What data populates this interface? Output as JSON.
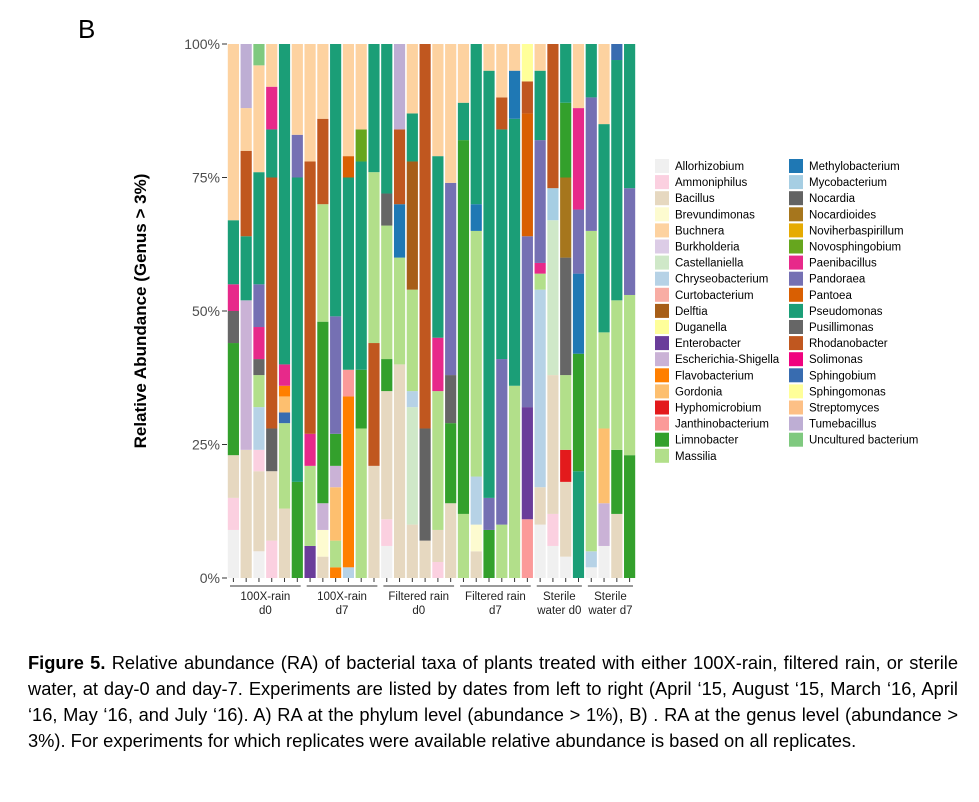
{
  "panel_label": "B",
  "caption": {
    "lead": "Figure 5.",
    "text": " Relative abundance (RA) of bacterial taxa of plants treated with either 100X-rain, filtered rain, or sterile water, at day-0 and day-7. Experiments are listed by dates from left to right (April ‘15, August ‘15, March ‘16, April ‘16, May ‘16, and July ‘16). A) RA at the phylum level (abundance > 1%), B) . RA at the genus level (abundance > 3%). For experiments for which replicates were available relative abundance is based on all replicates."
  },
  "chart_data": {
    "type": "bar",
    "stacked": true,
    "ylabel": "Relative Abundance (Genus > 3%)",
    "yticks": [
      "0%",
      "25%",
      "50%",
      "75%",
      "100%"
    ],
    "ylim": [
      0,
      100
    ],
    "legend_position": "right",
    "groups": [
      {
        "label": "100X-rain d0",
        "line1": "100X-rain",
        "line2": "d0",
        "bars": 6
      },
      {
        "label": "100X-rain d7",
        "line1": "100X-rain",
        "line2": "d7",
        "bars": 6
      },
      {
        "label": "Filtered rain d0",
        "line1": "Filtered rain",
        "line2": "d0",
        "bars": 6
      },
      {
        "label": "Filtered rain d7",
        "line1": "Filtered rain",
        "line2": "d7",
        "bars": 6
      },
      {
        "label": "Sterile water d0",
        "line1": "Sterile",
        "line2": "water d0",
        "bars": 4
      },
      {
        "label": "Sterile water d7",
        "line1": "Sterile",
        "line2": "water d7",
        "bars": 4
      }
    ],
    "taxa": [
      {
        "name": "Allorhizobium",
        "color": "#f0f0f0"
      },
      {
        "name": "Ammoniphilus",
        "color": "#fbd0e0"
      },
      {
        "name": "Bacillus",
        "color": "#e6d8c0"
      },
      {
        "name": "Brevundimonas",
        "color": "#fdfbd0"
      },
      {
        "name": "Buchnera",
        "color": "#fdd2a0"
      },
      {
        "name": "Burkholderia",
        "color": "#dccce6"
      },
      {
        "name": "Castellaniella",
        "color": "#cfe8c8"
      },
      {
        "name": "Chryseobacterium",
        "color": "#b6d2e6"
      },
      {
        "name": "Curtobacterium",
        "color": "#f8ada4"
      },
      {
        "name": "Delftia",
        "color": "#a75e18"
      },
      {
        "name": "Duganella",
        "color": "#fefe9a"
      },
      {
        "name": "Enterobacter",
        "color": "#6a3d9a"
      },
      {
        "name": "Escherichia-Shigella",
        "color": "#cab2d6"
      },
      {
        "name": "Flavobacterium",
        "color": "#ff7f00"
      },
      {
        "name": "Gordonia",
        "color": "#fdbf6f"
      },
      {
        "name": "Hyphomicrobium",
        "color": "#e31a1c"
      },
      {
        "name": "Janthinobacterium",
        "color": "#fb9a99"
      },
      {
        "name": "Limnobacter",
        "color": "#33a02c"
      },
      {
        "name": "Massilia",
        "color": "#b2df8a"
      },
      {
        "name": "Methylobacterium",
        "color": "#1f78b4"
      },
      {
        "name": "Mycobacterium",
        "color": "#a6cee3"
      },
      {
        "name": "Nocardia",
        "color": "#636363"
      },
      {
        "name": "Nocardioides",
        "color": "#a6761d"
      },
      {
        "name": "Noviherbaspirillum",
        "color": "#e6ab02"
      },
      {
        "name": "Novosphingobium",
        "color": "#66a61e"
      },
      {
        "name": "Paenibacillus",
        "color": "#e7298a"
      },
      {
        "name": "Pandoraea",
        "color": "#7570b3"
      },
      {
        "name": "Pantoea",
        "color": "#d95f02"
      },
      {
        "name": "Pseudomonas",
        "color": "#1b9e77"
      },
      {
        "name": "Pusillimonas",
        "color": "#666666"
      },
      {
        "name": "Rhodanobacter",
        "color": "#c0571f"
      },
      {
        "name": "Solimonas",
        "color": "#f0027f"
      },
      {
        "name": "Sphingobium",
        "color": "#386cb0"
      },
      {
        "name": "Sphingomonas",
        "color": "#ffff99"
      },
      {
        "name": "Streptomyces",
        "color": "#fdc086"
      },
      {
        "name": "Tumebacillus",
        "color": "#beaed4"
      },
      {
        "name": "Uncultured bacterium",
        "color": "#7fc97f"
      }
    ],
    "bars": [
      {
        "group": "100X-rain d0",
        "segments": [
          [
            "Allorhizobium",
            9
          ],
          [
            "Ammoniphilus",
            6
          ],
          [
            "Bacillus",
            8
          ],
          [
            "Limnobacter",
            21
          ],
          [
            "Pusillimonas",
            6
          ],
          [
            "Paenibacillus",
            5
          ],
          [
            "Pseudomonas",
            12
          ],
          [
            "Buchnera",
            33
          ]
        ]
      },
      {
        "group": "100X-rain d0",
        "segments": [
          [
            "Bacillus",
            24
          ],
          [
            "Escherichia-Shigella",
            28
          ],
          [
            "Pseudomonas",
            12
          ],
          [
            "Rhodanobacter",
            16
          ],
          [
            "Buchnera",
            8
          ],
          [
            "Tumebacillus",
            12
          ]
        ]
      },
      {
        "group": "100X-rain d0",
        "segments": [
          [
            "Allorhizobium",
            5
          ],
          [
            "Bacillus",
            15
          ],
          [
            "Ammoniphilus",
            4
          ],
          [
            "Chryseobacterium",
            8
          ],
          [
            "Massilia",
            6
          ],
          [
            "Pusillimonas",
            3
          ],
          [
            "Paenibacillus",
            6
          ],
          [
            "Pandoraea",
            8
          ],
          [
            "Pseudomonas",
            21
          ],
          [
            "Buchnera",
            20
          ],
          [
            "Uncultured bacterium",
            4
          ]
        ]
      },
      {
        "group": "100X-rain d0",
        "segments": [
          [
            "Ammoniphilus",
            7
          ],
          [
            "Bacillus",
            13
          ],
          [
            "Nocardia",
            8
          ],
          [
            "Rhodanobacter",
            47
          ],
          [
            "Pseudomonas",
            9
          ],
          [
            "Paenibacillus",
            8
          ],
          [
            "Buchnera",
            8
          ]
        ]
      },
      {
        "group": "100X-rain d0",
        "segments": [
          [
            "Bacillus",
            13
          ],
          [
            "Massilia",
            16
          ],
          [
            "Sphingobium",
            2
          ],
          [
            "Gordonia",
            3
          ],
          [
            "Flavobacterium",
            2
          ],
          [
            "Paenibacillus",
            4
          ],
          [
            "Pseudomonas",
            60
          ]
        ]
      },
      {
        "group": "100X-rain d0",
        "segments": [
          [
            "Limnobacter",
            18
          ],
          [
            "Pseudomonas",
            57
          ],
          [
            "Pandoraea",
            8
          ],
          [
            "Buchnera",
            17
          ]
        ]
      },
      {
        "group": "100X-rain d7",
        "segments": [
          [
            "Enterobacter",
            6
          ],
          [
            "Massilia",
            15
          ],
          [
            "Paenibacillus",
            6
          ],
          [
            "Rhodanobacter",
            51
          ],
          [
            "Buchnera",
            22
          ]
        ]
      },
      {
        "group": "100X-rain d7",
        "segments": [
          [
            "Bacillus",
            4
          ],
          [
            "Brevundimonas",
            5
          ],
          [
            "Escherichia-Shigella",
            5
          ],
          [
            "Limnobacter",
            34
          ],
          [
            "Massilia",
            22
          ],
          [
            "Rhodanobacter",
            16
          ],
          [
            "Buchnera",
            14
          ]
        ]
      },
      {
        "group": "100X-rain d7",
        "segments": [
          [
            "Flavobacterium",
            2
          ],
          [
            "Massilia",
            5
          ],
          [
            "Gordonia",
            10
          ],
          [
            "Escherichia-Shigella",
            4
          ],
          [
            "Limnobacter",
            6
          ],
          [
            "Pandoraea",
            22
          ],
          [
            "Pseudomonas",
            51
          ]
        ]
      },
      {
        "group": "100X-rain d7",
        "segments": [
          [
            "Chryseobacterium",
            2
          ],
          [
            "Flavobacterium",
            32
          ],
          [
            "Janthinobacterium",
            5
          ],
          [
            "Pseudomonas",
            36
          ],
          [
            "Pantoea",
            4
          ],
          [
            "Buchnera",
            21
          ]
        ]
      },
      {
        "group": "100X-rain d7",
        "segments": [
          [
            "Massilia",
            28
          ],
          [
            "Limnobacter",
            11
          ],
          [
            "Pseudomonas",
            39
          ],
          [
            "Novosphingobium",
            6
          ],
          [
            "Buchnera",
            16
          ]
        ]
      },
      {
        "group": "100X-rain d7",
        "segments": [
          [
            "Bacillus",
            21
          ],
          [
            "Rhodanobacter",
            23
          ],
          [
            "Massilia",
            32
          ],
          [
            "Pseudomonas",
            24
          ]
        ]
      },
      {
        "group": "Filtered rain d0",
        "segments": [
          [
            "Allorhizobium",
            6
          ],
          [
            "Ammoniphilus",
            5
          ],
          [
            "Bacillus",
            24
          ],
          [
            "Limnobacter",
            6
          ],
          [
            "Massilia",
            25
          ],
          [
            "Pusillimonas",
            6
          ],
          [
            "Pseudomonas",
            28
          ]
        ]
      },
      {
        "group": "Filtered rain d0",
        "segments": [
          [
            "Bacillus",
            40
          ],
          [
            "Massilia",
            20
          ],
          [
            "Methylobacterium",
            10
          ],
          [
            "Rhodanobacter",
            14
          ],
          [
            "Tumebacillus",
            16
          ]
        ]
      },
      {
        "group": "Filtered rain d0",
        "segments": [
          [
            "Bacillus",
            10
          ],
          [
            "Castellaniella",
            22
          ],
          [
            "Chryseobacterium",
            3
          ],
          [
            "Massilia",
            19
          ],
          [
            "Delftia",
            24
          ],
          [
            "Pseudomonas",
            9
          ],
          [
            "Buchnera",
            13
          ]
        ]
      },
      {
        "group": "Filtered rain d0",
        "segments": [
          [
            "Bacillus",
            7
          ],
          [
            "Nocardia",
            21
          ],
          [
            "Rhodanobacter",
            72
          ]
        ]
      },
      {
        "group": "Filtered rain d0",
        "segments": [
          [
            "Ammoniphilus",
            3
          ],
          [
            "Bacillus",
            6
          ],
          [
            "Massilia",
            26
          ],
          [
            "Paenibacillus",
            10
          ],
          [
            "Pseudomonas",
            34
          ],
          [
            "Buchnera",
            21
          ]
        ]
      },
      {
        "group": "Filtered rain d0",
        "segments": [
          [
            "Bacillus",
            14
          ],
          [
            "Limnobacter",
            15
          ],
          [
            "Pusillimonas",
            9
          ],
          [
            "Pandoraea",
            36
          ],
          [
            "Buchnera",
            26
          ]
        ]
      },
      {
        "group": "Filtered rain d7",
        "segments": [
          [
            "Massilia",
            12
          ],
          [
            "Limnobacter",
            70
          ],
          [
            "Pseudomonas",
            7
          ],
          [
            "Buchnera",
            11
          ]
        ]
      },
      {
        "group": "Filtered rain d7",
        "segments": [
          [
            "Bacillus",
            5
          ],
          [
            "Brevundimonas",
            5
          ],
          [
            "Chryseobacterium",
            9
          ],
          [
            "Massilia",
            46
          ],
          [
            "Methylobacterium",
            5
          ],
          [
            "Pseudomonas",
            30
          ]
        ]
      },
      {
        "group": "Filtered rain d7",
        "segments": [
          [
            "Limnobacter",
            9
          ],
          [
            "Pandoraea",
            6
          ],
          [
            "Pseudomonas",
            80
          ],
          [
            "Buchnera",
            5
          ]
        ]
      },
      {
        "group": "Filtered rain d7",
        "segments": [
          [
            "Massilia",
            10
          ],
          [
            "Pandoraea",
            31
          ],
          [
            "Pseudomonas",
            43
          ],
          [
            "Rhodanobacter",
            6
          ],
          [
            "Buchnera",
            10
          ]
        ]
      },
      {
        "group": "Filtered rain d7",
        "segments": [
          [
            "Massilia",
            36
          ],
          [
            "Pseudomonas",
            50
          ],
          [
            "Methylobacterium",
            9
          ],
          [
            "Buchnera",
            5
          ]
        ]
      },
      {
        "group": "Filtered rain d7",
        "segments": [
          [
            "Janthinobacterium",
            11
          ],
          [
            "Enterobacter",
            21
          ],
          [
            "Pandoraea",
            32
          ],
          [
            "Pantoea",
            23
          ],
          [
            "Rhodanobacter",
            6
          ],
          [
            "Sphingomonas",
            7
          ]
        ]
      },
      {
        "group": "Sterile water d0",
        "segments": [
          [
            "Allorhizobium",
            10
          ],
          [
            "Bacillus",
            7
          ],
          [
            "Chryseobacterium",
            37
          ],
          [
            "Massilia",
            3
          ],
          [
            "Paenibacillus",
            2
          ],
          [
            "Pandoraea",
            23
          ],
          [
            "Pseudomonas",
            13
          ],
          [
            "Buchnera",
            5
          ]
        ]
      },
      {
        "group": "Sterile water d0",
        "segments": [
          [
            "Allorhizobium",
            6
          ],
          [
            "Ammoniphilus",
            6
          ],
          [
            "Bacillus",
            26
          ],
          [
            "Castellaniella",
            29
          ],
          [
            "Mycobacterium",
            6
          ],
          [
            "Rhodanobacter",
            27
          ]
        ]
      },
      {
        "group": "Sterile water d0",
        "segments": [
          [
            "Allorhizobium",
            4
          ],
          [
            "Bacillus",
            14
          ],
          [
            "Hyphomicrobium",
            6
          ],
          [
            "Massilia",
            14
          ],
          [
            "Pusillimonas",
            22
          ],
          [
            "Nocardioides",
            15
          ],
          [
            "Limnobacter",
            14
          ],
          [
            "Pseudomonas",
            11
          ]
        ]
      },
      {
        "group": "Sterile water d0",
        "segments": [
          [
            "Pseudomonas",
            20
          ],
          [
            "Limnobacter",
            22
          ],
          [
            "Methylobacterium",
            15
          ],
          [
            "Pandoraea",
            12
          ],
          [
            "Paenibacillus",
            19
          ],
          [
            "Buchnera",
            12
          ]
        ]
      },
      {
        "group": "Sterile water d7",
        "segments": [
          [
            "Allorhizobium",
            2
          ],
          [
            "Chryseobacterium",
            3
          ],
          [
            "Massilia",
            60
          ],
          [
            "Pandoraea",
            25
          ],
          [
            "Pseudomonas",
            10
          ]
        ]
      },
      {
        "group": "Sterile water d7",
        "segments": [
          [
            "Allorhizobium",
            6
          ],
          [
            "Escherichia-Shigella",
            8
          ],
          [
            "Gordonia",
            14
          ],
          [
            "Massilia",
            18
          ],
          [
            "Pseudomonas",
            39
          ],
          [
            "Buchnera",
            15
          ]
        ]
      },
      {
        "group": "Sterile water d7",
        "segments": [
          [
            "Bacillus",
            12
          ],
          [
            "Limnobacter",
            12
          ],
          [
            "Massilia",
            28
          ],
          [
            "Pseudomonas",
            45
          ],
          [
            "Sphingobium",
            3
          ]
        ]
      },
      {
        "group": "Sterile water d7",
        "segments": [
          [
            "Limnobacter",
            23
          ],
          [
            "Massilia",
            30
          ],
          [
            "Pandoraea",
            20
          ],
          [
            "Pseudomonas",
            27
          ]
        ]
      }
    ]
  }
}
